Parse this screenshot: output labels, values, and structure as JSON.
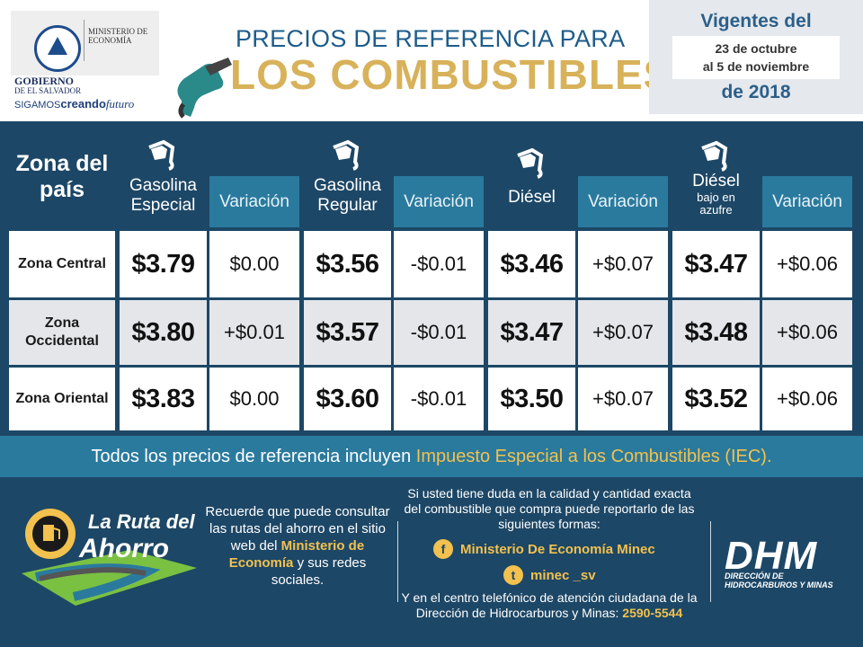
{
  "header": {
    "ministry": "MINISTERIO DE ECONOMÍA",
    "government": "GOBIERNO",
    "government_sub": "DE EL SALVADOR",
    "slogan_a": "SIGAMOS",
    "slogan_b": "creando",
    "slogan_c": "futuro",
    "title_line1": "PRECIOS DE REFERENCIA PARA",
    "title_line2": "LOS COMBUSTIBLES",
    "validity_title": "Vigentes del",
    "validity_line1": "23 de octubre",
    "validity_line2": "al 5 de noviembre",
    "validity_year": "de 2018"
  },
  "table": {
    "zone_header": "Zona del país",
    "variation_label": "Variación",
    "fuels": [
      {
        "name": "Gasolina Especial",
        "sub": ""
      },
      {
        "name": "Gasolina Regular",
        "sub": ""
      },
      {
        "name": "Diésel",
        "sub": ""
      },
      {
        "name": "Diésel",
        "sub": "bajo en azufre"
      }
    ],
    "rows": [
      {
        "zone": "Zona Central",
        "cells": [
          [
            "$3.79",
            "$0.00"
          ],
          [
            "$3.56",
            "-$0.01"
          ],
          [
            "$3.46",
            "+$0.07"
          ],
          [
            "$3.47",
            "+$0.06"
          ]
        ]
      },
      {
        "zone": "Zona Occidental",
        "cells": [
          [
            "$3.80",
            "+$0.01"
          ],
          [
            "$3.57",
            "-$0.01"
          ],
          [
            "$3.47",
            "+$0.07"
          ],
          [
            "$3.48",
            "+$0.06"
          ]
        ]
      },
      {
        "zone": "Zona Oriental",
        "cells": [
          [
            "$3.83",
            "$0.00"
          ],
          [
            "$3.60",
            "-$0.01"
          ],
          [
            "$3.50",
            "+$0.07"
          ],
          [
            "$3.52",
            "+$0.06"
          ]
        ]
      }
    ]
  },
  "footer": {
    "iec_text": "Todos los precios de referencia incluyen",
    "iec_highlight": "Impuesto Especial a los Combustibles (IEC).",
    "ruta_line1": "La Ruta del",
    "ruta_line2": "Ahorro",
    "recuerde_text": "Recuerde que puede consultar las rutas del ahorro en el sitio web del",
    "recuerde_highlight": "Ministerio de Economía",
    "recuerde_tail": "y sus redes sociales.",
    "duda_text": "Si usted tiene duda en la calidad y cantidad exacta del combustible que compra puede reportarlo de las siguientes formas:",
    "facebook": "Ministerio De Economía Minec",
    "twitter": "minec _sv",
    "call_text": "Y en el centro telefónico de atención ciudadana de la Dirección de Hidrocarburos y Minas:",
    "phone": "2590-5544",
    "dhm": "DHM",
    "dhm_sub1": "DIRECCIÓN DE",
    "dhm_sub2": "HIDROCARBUROS Y MINAS"
  },
  "colors": {
    "navy": "#1d4766",
    "teal": "#2a7a9e",
    "gold": "#d8b25a",
    "yellow": "#f2c14e"
  }
}
